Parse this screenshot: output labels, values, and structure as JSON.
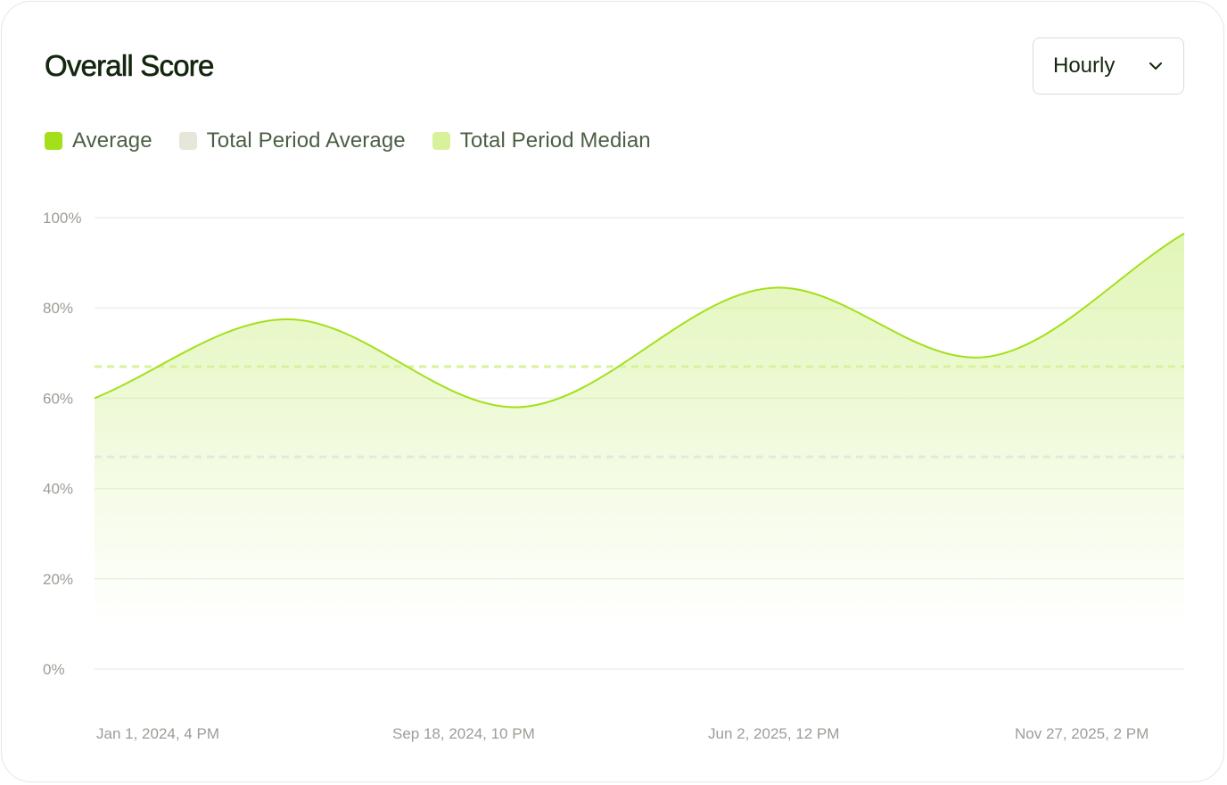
{
  "header": {
    "title": "Overall Score"
  },
  "interval_select": {
    "value": "Hourly",
    "icon": "chevron-down-icon"
  },
  "legend": [
    {
      "label": "Average",
      "color": "#a3e01a"
    },
    {
      "label": "Total Period Average",
      "color": "#e6e7da"
    },
    {
      "label": "Total Period Median",
      "color": "#d8f29c"
    }
  ],
  "chart_data": {
    "type": "area",
    "title": "Overall Score",
    "xlabel": "",
    "ylabel": "",
    "ylim": [
      0,
      100
    ],
    "y_ticks": [
      "0%",
      "20%",
      "40%",
      "60%",
      "80%",
      "100%"
    ],
    "y_tick_values": [
      0,
      20,
      40,
      60,
      80,
      100
    ],
    "x_tick_labels": [
      "Jan 1, 2024, 4 PM",
      "Sep 18, 2024, 10 PM",
      "Jun 2, 2025, 12 PM",
      "Nov 27, 2025, 2 PM"
    ],
    "series": [
      {
        "name": "Average",
        "color": "#a3e01a",
        "points": [
          {
            "x": "2024-01-01T16:00",
            "y": 60
          },
          {
            "x": "2024-05-24T00:00",
            "y": 77.5
          },
          {
            "x": "2024-11-09T00:00",
            "y": 58
          },
          {
            "x": "2025-05-24T00:00",
            "y": 84.5
          },
          {
            "x": "2025-10-17T00:00",
            "y": 69
          },
          {
            "x": "2026-03-21T00:00",
            "y": 96.5
          }
        ]
      }
    ],
    "reference_lines": [
      {
        "name": "Total Period Median",
        "y": 67,
        "color": "#d8f29c",
        "style": "dashed"
      },
      {
        "name": "Total Period Average",
        "y": 47,
        "color": "#e6e7da",
        "style": "dashed"
      }
    ],
    "grid": true,
    "legend_position": "top-left"
  }
}
